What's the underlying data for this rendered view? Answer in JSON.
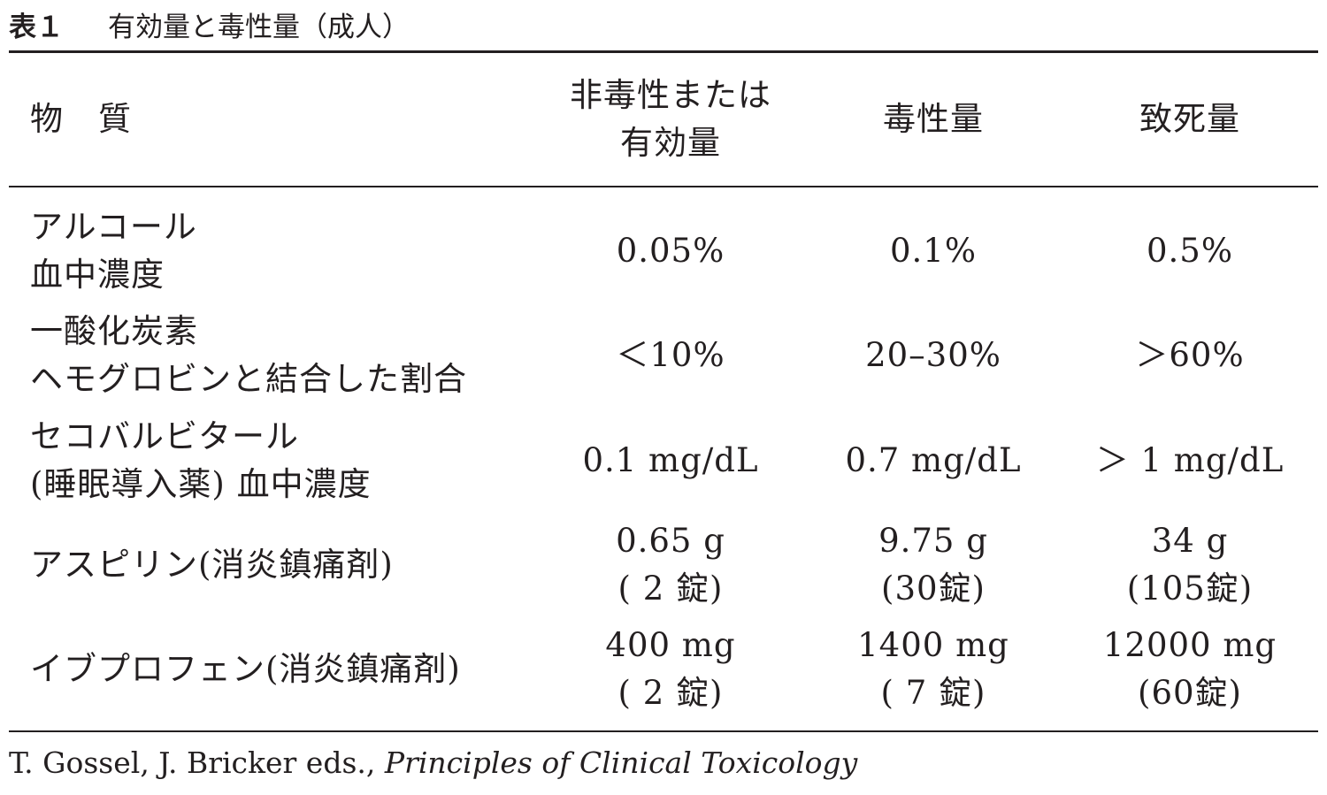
{
  "table": {
    "number": "表１",
    "title": "有効量と毒性量（成人）",
    "headers": {
      "substance_part1": "物",
      "substance_part2": "質",
      "effective_line1": "非毒性または",
      "effective_line2": "有効量",
      "toxic": "毒性量",
      "lethal": "致死量"
    },
    "rows": [
      {
        "substance": [
          "アルコール",
          "血中濃度"
        ],
        "effective": [
          "0.05%"
        ],
        "toxic": [
          "0.1%"
        ],
        "lethal": [
          "0.5%"
        ]
      },
      {
        "substance": [
          "一酸化炭素",
          "ヘモグロビンと結合した割合"
        ],
        "effective": [
          "＜10%"
        ],
        "toxic": [
          "20–30%"
        ],
        "lethal": [
          "＞60%"
        ]
      },
      {
        "substance": [
          "セコバルビタール",
          "(睡眠導入薬) 血中濃度"
        ],
        "effective": [
          "0.1 mg/dL"
        ],
        "toxic": [
          "0.7 mg/dL"
        ],
        "lethal": [
          "＞ 1 mg/dL"
        ]
      },
      {
        "substance": [
          "アスピリン(消炎鎮痛剤)"
        ],
        "effective": [
          "0.65 g",
          "( 2 錠)"
        ],
        "toxic": [
          "9.75 g",
          "(30錠)"
        ],
        "lethal": [
          "34 g",
          "(105錠)"
        ]
      },
      {
        "substance": [
          "イブプロフェン(消炎鎮痛剤)"
        ],
        "effective": [
          "400 mg",
          "( 2 錠)"
        ],
        "toxic": [
          "1400 mg",
          "( 7 錠)"
        ],
        "lethal": [
          "12000 mg",
          "(60錠)"
        ]
      }
    ]
  },
  "source": {
    "authors": "T. Gossel, J. Bricker eds.,",
    "book_title": "Principles of Clinical Toxicology"
  }
}
